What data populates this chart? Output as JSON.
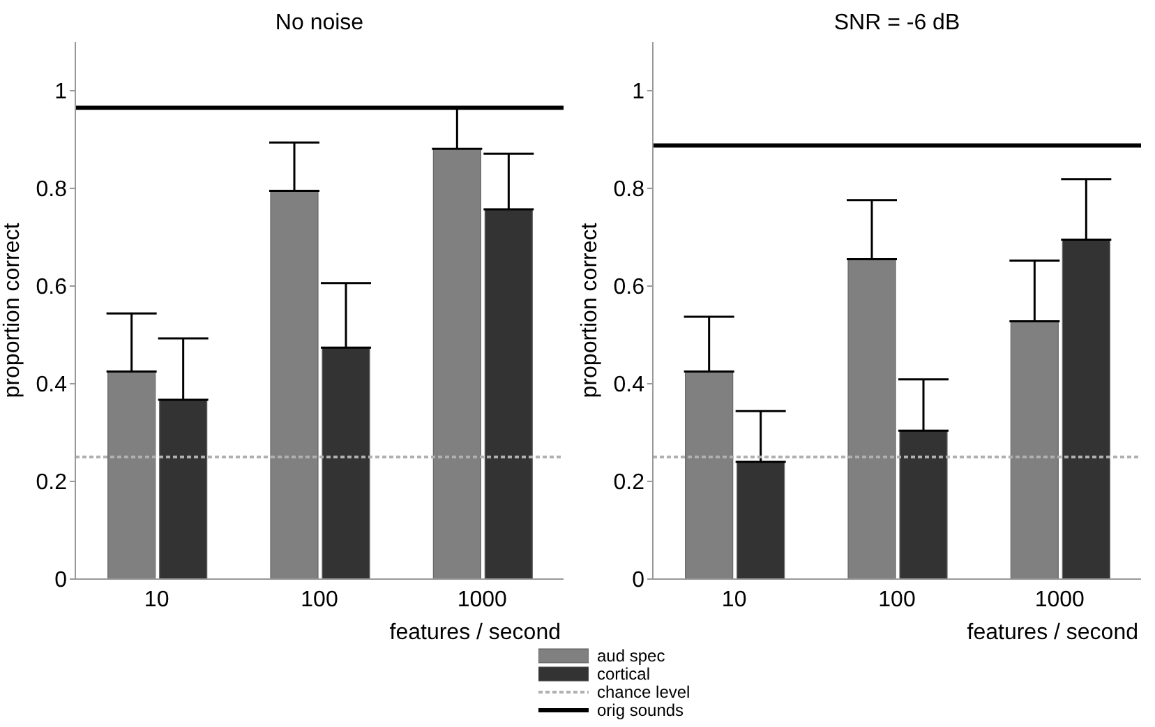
{
  "chart_data": [
    {
      "type": "bar",
      "title": "No noise",
      "xlabel": "features / second",
      "ylabel": "proportion correct",
      "categories": [
        "10",
        "100",
        "1000"
      ],
      "ylim": [
        0,
        1.1
      ],
      "yticks": [
        0,
        0.2,
        0.4,
        0.6,
        0.8,
        1
      ],
      "grid": false,
      "series": [
        {
          "color": "#808080",
          "values": [
            0.425,
            0.795,
            0.881
          ],
          "errors": [
            [
              0.425,
              0.544
            ],
            [
              0.795,
              0.894
            ],
            [
              0.881,
              0.964
            ]
          ]
        },
        {
          "color": "#333333",
          "values": [
            0.367,
            0.474,
            0.757
          ],
          "errors": [
            [
              0.367,
              0.493
            ],
            [
              0.474,
              0.606
            ],
            [
              0.757,
              0.871
            ]
          ]
        }
      ],
      "ref_lines": [
        {
          "axis": "y",
          "value": 0.25,
          "color": "#b0b0b0",
          "line_style": "dotted"
        },
        {
          "axis": "y",
          "value": 0.965,
          "color": "#000000",
          "line_style": "solid"
        }
      ]
    },
    {
      "type": "bar",
      "title": "SNR = -6 dB",
      "xlabel": "features / second",
      "ylabel": "proportion correct",
      "categories": [
        "10",
        "100",
        "1000"
      ],
      "ylim": [
        0,
        1.1
      ],
      "yticks": [
        0,
        0.2,
        0.4,
        0.6,
        0.8,
        1
      ],
      "grid": false,
      "legend": "bottom",
      "series": [
        {
          "name": "aud spec",
          "color": "#808080",
          "values": [
            0.425,
            0.655,
            0.528
          ],
          "errors": [
            [
              0.425,
              0.537
            ],
            [
              0.655,
              0.776
            ],
            [
              0.528,
              0.652
            ]
          ]
        },
        {
          "name": "cortical",
          "color": "#333333",
          "values": [
            0.24,
            0.304,
            0.695
          ],
          "errors": [
            [
              0.24,
              0.344
            ],
            [
              0.304,
              0.409
            ],
            [
              0.695,
              0.819
            ]
          ]
        }
      ],
      "ref_lines": [
        {
          "axis": "y",
          "value": 0.25,
          "label": "chance level",
          "color": "#b0b0b0",
          "line_style": "dotted"
        },
        {
          "axis": "y",
          "value": 0.888,
          "label": "orig sounds",
          "color": "#000000",
          "line_style": "solid"
        }
      ]
    }
  ]
}
